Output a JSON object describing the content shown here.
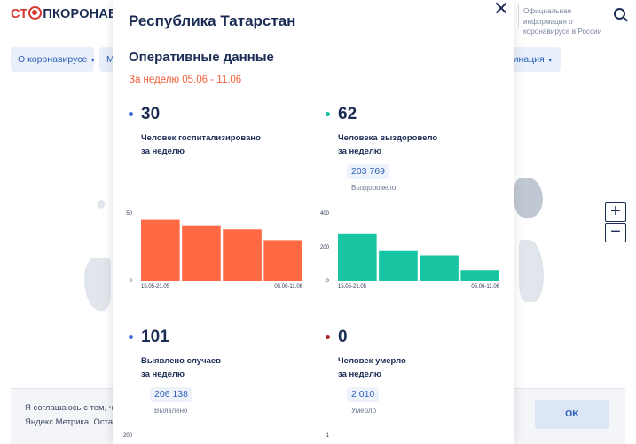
{
  "header": {
    "logo_part1": "СТ",
    "logo_part2": "ПКОРОНАВИ",
    "official_info": "Официальная информация о коронавирусе в России"
  },
  "nav": {
    "item1": "О коронавирусе",
    "item2": "М",
    "item3": "кцинация"
  },
  "map": {
    "zoom_in": "+",
    "zoom_out": "−"
  },
  "cookie": {
    "line1": "Я соглашаюсь с тем, ч",
    "line2": "Яндекс.Метрика. Оста",
    "ok_label": "OK"
  },
  "modal": {
    "title": "Республика Татарстан",
    "subtitle": "Оперативные данные",
    "period": "За неделю 05.06 - 11.06",
    "stats": {
      "hospitalized": {
        "value": "30",
        "label_line1": "Человек госпитализировано",
        "label_line2": "за неделю",
        "dot_color": "#3b6fd1"
      },
      "recovered": {
        "value": "62",
        "label_line1": "Человека выздоровело",
        "label_line2": "за неделю",
        "total": "203 769",
        "total_label": "Выздоровело",
        "dot_color": "#1bbfa0"
      },
      "cases": {
        "value": "101",
        "label_line1": "Выявлено случаев",
        "label_line2": "за неделю",
        "total": "206 138",
        "total_label": "Выявлено",
        "dot_color": "#3b6fd1"
      },
      "deaths": {
        "value": "0",
        "label_line1": "Человек умерло",
        "label_line2": "за неделю",
        "total": "2 010",
        "total_label": "Умерло",
        "dot_color": "#b0242a"
      }
    }
  },
  "chart_data": [
    {
      "type": "bar",
      "categories": [
        "15.05-21.05",
        "22.05-28.05",
        "29.05-04.06",
        "05.06-11.06"
      ],
      "x_tick_labels": [
        "15.05-21.05",
        "05.06-11.06"
      ],
      "values": [
        45,
        41,
        38,
        30
      ],
      "ylim": [
        0,
        50
      ],
      "y_tick_labels": [
        "0",
        "50"
      ],
      "color": "#ff6a45",
      "grid": false
    },
    {
      "type": "bar",
      "categories": [
        "15.05-21.05",
        "22.05-28.05",
        "29.05-04.06",
        "05.06-11.06"
      ],
      "x_tick_labels": [
        "15.05-21.05",
        "05.06-11.06"
      ],
      "values": [
        280,
        175,
        150,
        62
      ],
      "ylim": [
        0,
        400
      ],
      "y_tick_labels": [
        "0",
        "200",
        "400"
      ],
      "color": "#17c5a2",
      "grid": false
    },
    {
      "type": "bar",
      "partial": true,
      "ylim": [
        0,
        200
      ],
      "y_tick_labels": [
        "200"
      ],
      "color": "#ff6a45"
    },
    {
      "type": "bar",
      "partial": true,
      "ylim": [
        0,
        1
      ],
      "y_tick_labels": [
        "1"
      ],
      "color": "#17c5a2"
    }
  ]
}
